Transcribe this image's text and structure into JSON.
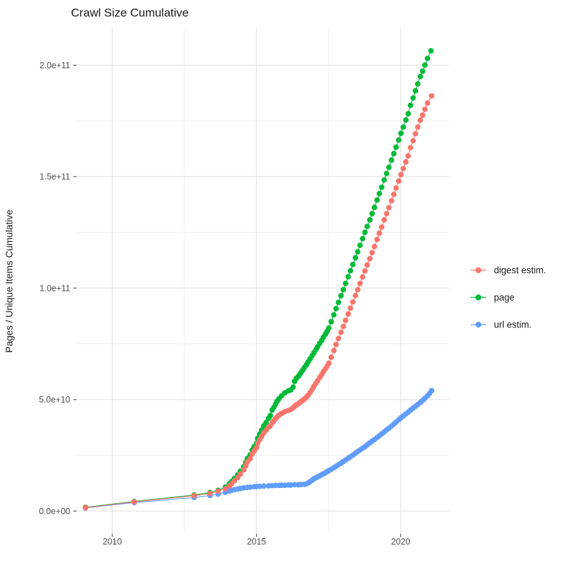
{
  "title": "Crawl Size Cumulative",
  "axes": {
    "y_label": "Pages / Unique Items Cumulative",
    "x_tick_labels": [
      "2010",
      "2015",
      "2020"
    ],
    "x_tick_years": [
      2010,
      2015,
      2020
    ],
    "x_minor_years": [
      2012.5,
      2017.5
    ],
    "y_tick_labels": [
      "0.0e+00",
      "5.0e+10",
      "1.0e+11",
      "1.5e+11",
      "2.0e+11"
    ],
    "y_tick_values_e9": [
      0,
      50,
      100,
      150,
      200
    ],
    "y_minor_values_e9": [
      25,
      75,
      125,
      175
    ]
  },
  "legend": [
    {
      "label": "digest estim.",
      "color": "#F8766D",
      "series": "digest"
    },
    {
      "label": "page",
      "color": "#00BA38",
      "series": "page"
    },
    {
      "label": "url estim.",
      "color": "#619CFF",
      "series": "url"
    }
  ],
  "colors": {
    "digest": "#F8766D",
    "page": "#00BA38",
    "url": "#619CFF",
    "grid_major": "#E4E4E4",
    "grid_minor": "#EFEFEF",
    "tick": "#333333"
  },
  "chart_data": {
    "type": "line",
    "marker": "point",
    "title": "Crawl Size Cumulative",
    "xlabel": "",
    "ylabel": "Pages / Unique Items Cumulative",
    "x_unit": "year (decimal)",
    "y_unit": "items, value expressed in billions (1e9); e.g. 206.4 = 2.064e+11",
    "xlim": [
      2008.75,
      2021.67
    ],
    "ylim_e9": [
      0,
      213
    ],
    "grid": true,
    "legend_position": "right",
    "series": [
      {
        "name": "url estim.",
        "color": "#619CFF",
        "points": [
          [
            2009.07,
            1.4
          ],
          [
            2010.76,
            3.8
          ],
          [
            2012.84,
            6.1
          ],
          [
            2013.39,
            7.0
          ],
          [
            2013.67,
            7.6
          ],
          [
            2013.92,
            8.4
          ],
          [
            2014.06,
            9.0
          ],
          [
            2014.13,
            9.3
          ],
          [
            2014.23,
            9.6
          ],
          [
            2014.35,
            9.9
          ],
          [
            2014.44,
            10.1
          ],
          [
            2014.56,
            10.4
          ],
          [
            2014.68,
            10.6
          ],
          [
            2014.78,
            10.7
          ],
          [
            2014.92,
            10.9
          ],
          [
            2015.0,
            11.0
          ],
          [
            2015.11,
            11.1
          ],
          [
            2015.25,
            11.2
          ],
          [
            2015.42,
            11.3
          ],
          [
            2015.54,
            11.4
          ],
          [
            2015.66,
            11.5
          ],
          [
            2015.78,
            11.5
          ],
          [
            2015.87,
            11.6
          ],
          [
            2015.98,
            11.6
          ],
          [
            2016.1,
            11.7
          ],
          [
            2016.19,
            11.7
          ],
          [
            2016.32,
            11.8
          ],
          [
            2016.45,
            11.8
          ],
          [
            2016.55,
            11.9
          ],
          [
            2016.66,
            12.0
          ],
          [
            2016.73,
            12.2
          ],
          [
            2016.79,
            12.6
          ],
          [
            2016.86,
            13.2
          ],
          [
            2016.93,
            13.9
          ],
          [
            2016.99,
            14.5
          ],
          [
            2017.06,
            14.9
          ],
          [
            2017.12,
            15.3
          ],
          [
            2017.19,
            15.8
          ],
          [
            2017.26,
            16.3
          ],
          [
            2017.32,
            16.7
          ],
          [
            2017.39,
            17.2
          ],
          [
            2017.45,
            17.7
          ],
          [
            2017.51,
            18.1
          ],
          [
            2017.59,
            18.7
          ],
          [
            2017.68,
            19.4
          ],
          [
            2017.76,
            20.1
          ],
          [
            2017.84,
            20.8
          ],
          [
            2017.93,
            21.5
          ],
          [
            2018.01,
            22.2
          ],
          [
            2018.09,
            22.9
          ],
          [
            2018.18,
            23.7
          ],
          [
            2018.26,
            24.4
          ],
          [
            2018.34,
            25.1
          ],
          [
            2018.43,
            25.9
          ],
          [
            2018.51,
            26.7
          ],
          [
            2018.59,
            27.4
          ],
          [
            2018.68,
            28.2
          ],
          [
            2018.76,
            28.9
          ],
          [
            2018.84,
            29.7
          ],
          [
            2018.93,
            30.6
          ],
          [
            2019.01,
            31.4
          ],
          [
            2019.09,
            32.1
          ],
          [
            2019.18,
            33.0
          ],
          [
            2019.26,
            33.8
          ],
          [
            2019.34,
            34.6
          ],
          [
            2019.43,
            35.5
          ],
          [
            2019.51,
            36.4
          ],
          [
            2019.59,
            37.2
          ],
          [
            2019.68,
            38.1
          ],
          [
            2019.76,
            39.0
          ],
          [
            2019.84,
            39.9
          ],
          [
            2019.93,
            40.9
          ],
          [
            2020.01,
            41.9
          ],
          [
            2020.09,
            42.7
          ],
          [
            2020.18,
            43.6
          ],
          [
            2020.26,
            44.4
          ],
          [
            2020.34,
            45.3
          ],
          [
            2020.43,
            46.2
          ],
          [
            2020.51,
            47.0
          ],
          [
            2020.59,
            47.8
          ],
          [
            2020.68,
            48.7
          ],
          [
            2020.76,
            49.6
          ],
          [
            2020.84,
            50.6
          ],
          [
            2020.93,
            51.7
          ],
          [
            2021.0,
            52.8
          ],
          [
            2021.07,
            54.0
          ]
        ]
      },
      {
        "name": "page",
        "color": "#00BA38",
        "points": [
          [
            2009.07,
            1.7
          ],
          [
            2010.76,
            4.3
          ],
          [
            2012.84,
            7.2
          ],
          [
            2013.39,
            8.3
          ],
          [
            2013.67,
            9.3
          ],
          [
            2013.92,
            10.8
          ],
          [
            2014.06,
            12.2
          ],
          [
            2014.13,
            13.2
          ],
          [
            2014.23,
            14.6
          ],
          [
            2014.35,
            16.2
          ],
          [
            2014.44,
            17.9
          ],
          [
            2014.56,
            19.9
          ],
          [
            2014.63,
            21.8
          ],
          [
            2014.68,
            23.6
          ],
          [
            2014.78,
            25.2
          ],
          [
            2014.85,
            27.4
          ],
          [
            2014.92,
            28.9
          ],
          [
            2015.0,
            30.4
          ],
          [
            2015.04,
            32.6
          ],
          [
            2015.11,
            34.5
          ],
          [
            2015.18,
            36.3
          ],
          [
            2015.25,
            38.2
          ],
          [
            2015.33,
            39.7
          ],
          [
            2015.42,
            41.6
          ],
          [
            2015.48,
            42.8
          ],
          [
            2015.54,
            45.3
          ],
          [
            2015.6,
            46.5
          ],
          [
            2015.66,
            47.9
          ],
          [
            2015.71,
            49.2
          ],
          [
            2015.78,
            50.4
          ],
          [
            2015.87,
            51.7
          ],
          [
            2015.98,
            53.0
          ],
          [
            2016.1,
            53.9
          ],
          [
            2016.19,
            54.3
          ],
          [
            2016.27,
            55.6
          ],
          [
            2016.32,
            58.2
          ],
          [
            2016.38,
            59.5
          ],
          [
            2016.45,
            60.4
          ],
          [
            2016.5,
            61.3
          ],
          [
            2016.55,
            62.3
          ],
          [
            2016.61,
            63.3
          ],
          [
            2016.66,
            64.4
          ],
          [
            2016.73,
            65.6
          ],
          [
            2016.79,
            66.9
          ],
          [
            2016.86,
            68.3
          ],
          [
            2016.93,
            69.7
          ],
          [
            2016.99,
            71.0
          ],
          [
            2017.06,
            72.4
          ],
          [
            2017.12,
            73.7
          ],
          [
            2017.19,
            75.2
          ],
          [
            2017.26,
            76.5
          ],
          [
            2017.32,
            78.0
          ],
          [
            2017.39,
            79.3
          ],
          [
            2017.45,
            80.6
          ],
          [
            2017.51,
            82.1
          ],
          [
            2017.59,
            84.9
          ],
          [
            2017.68,
            88.0
          ],
          [
            2017.76,
            90.8
          ],
          [
            2017.84,
            93.6
          ],
          [
            2017.93,
            96.6
          ],
          [
            2018.01,
            99.3
          ],
          [
            2018.09,
            102.1
          ],
          [
            2018.18,
            105.1
          ],
          [
            2018.26,
            107.8
          ],
          [
            2018.34,
            110.6
          ],
          [
            2018.43,
            113.6
          ],
          [
            2018.51,
            116.3
          ],
          [
            2018.59,
            119.2
          ],
          [
            2018.68,
            122.2
          ],
          [
            2018.76,
            125.0
          ],
          [
            2018.84,
            127.7
          ],
          [
            2018.93,
            130.6
          ],
          [
            2019.01,
            133.4
          ],
          [
            2019.09,
            136.2
          ],
          [
            2019.18,
            139.5
          ],
          [
            2019.26,
            142.4
          ],
          [
            2019.34,
            145.2
          ],
          [
            2019.43,
            148.5
          ],
          [
            2019.51,
            151.4
          ],
          [
            2019.59,
            154.2
          ],
          [
            2019.68,
            157.4
          ],
          [
            2019.76,
            160.3
          ],
          [
            2019.84,
            163.2
          ],
          [
            2019.93,
            166.4
          ],
          [
            2020.01,
            169.4
          ],
          [
            2020.09,
            172.2
          ],
          [
            2020.18,
            175.4
          ],
          [
            2020.26,
            178.2
          ],
          [
            2020.34,
            182.0
          ],
          [
            2020.43,
            185.3
          ],
          [
            2020.51,
            188.5
          ],
          [
            2020.59,
            191.6
          ],
          [
            2020.68,
            194.9
          ],
          [
            2020.76,
            197.3
          ],
          [
            2020.84,
            200.0
          ],
          [
            2020.93,
            203.0
          ],
          [
            2021.05,
            206.4
          ]
        ]
      },
      {
        "name": "digest estim.",
        "color": "#F8766D",
        "points": [
          [
            2009.07,
            1.5
          ],
          [
            2010.76,
            4.1
          ],
          [
            2012.84,
            6.9
          ],
          [
            2013.39,
            7.9
          ],
          [
            2013.67,
            8.9
          ],
          [
            2013.92,
            10.0
          ],
          [
            2014.06,
            11.2
          ],
          [
            2014.13,
            12.2
          ],
          [
            2014.23,
            13.5
          ],
          [
            2014.35,
            15.0
          ],
          [
            2014.44,
            16.6
          ],
          [
            2014.56,
            18.5
          ],
          [
            2014.63,
            20.3
          ],
          [
            2014.68,
            22.0
          ],
          [
            2014.78,
            23.5
          ],
          [
            2014.85,
            25.6
          ],
          [
            2014.92,
            27.0
          ],
          [
            2015.0,
            28.4
          ],
          [
            2015.04,
            30.3
          ],
          [
            2015.11,
            32.0
          ],
          [
            2015.18,
            33.5
          ],
          [
            2015.25,
            35.1
          ],
          [
            2015.33,
            36.2
          ],
          [
            2015.42,
            37.6
          ],
          [
            2015.48,
            38.3
          ],
          [
            2015.54,
            39.6
          ],
          [
            2015.6,
            40.5
          ],
          [
            2015.66,
            41.4
          ],
          [
            2015.71,
            42.2
          ],
          [
            2015.78,
            43.0
          ],
          [
            2015.87,
            43.8
          ],
          [
            2015.98,
            44.6
          ],
          [
            2016.1,
            45.1
          ],
          [
            2016.19,
            45.6
          ],
          [
            2016.27,
            46.3
          ],
          [
            2016.32,
            47.0
          ],
          [
            2016.38,
            47.6
          ],
          [
            2016.45,
            48.1
          ],
          [
            2016.5,
            48.7
          ],
          [
            2016.55,
            49.2
          ],
          [
            2016.61,
            49.7
          ],
          [
            2016.66,
            50.3
          ],
          [
            2016.73,
            51.1
          ],
          [
            2016.79,
            52.0
          ],
          [
            2016.86,
            53.2
          ],
          [
            2016.93,
            54.6
          ],
          [
            2016.99,
            56.0
          ],
          [
            2017.06,
            57.3
          ],
          [
            2017.12,
            58.5
          ],
          [
            2017.19,
            59.9
          ],
          [
            2017.26,
            61.2
          ],
          [
            2017.32,
            62.5
          ],
          [
            2017.39,
            63.8
          ],
          [
            2017.45,
            65.0
          ],
          [
            2017.51,
            66.3
          ],
          [
            2017.59,
            69.0
          ],
          [
            2017.68,
            72.0
          ],
          [
            2017.76,
            74.7
          ],
          [
            2017.84,
            77.4
          ],
          [
            2017.93,
            80.2
          ],
          [
            2018.01,
            82.8
          ],
          [
            2018.09,
            85.5
          ],
          [
            2018.18,
            88.4
          ],
          [
            2018.26,
            91.0
          ],
          [
            2018.34,
            93.8
          ],
          [
            2018.43,
            96.7
          ],
          [
            2018.51,
            99.3
          ],
          [
            2018.59,
            102.1
          ],
          [
            2018.68,
            105.0
          ],
          [
            2018.76,
            107.7
          ],
          [
            2018.84,
            110.4
          ],
          [
            2018.93,
            113.2
          ],
          [
            2019.01,
            115.9
          ],
          [
            2019.09,
            118.6
          ],
          [
            2019.18,
            121.8
          ],
          [
            2019.26,
            124.6
          ],
          [
            2019.34,
            127.4
          ],
          [
            2019.43,
            130.6
          ],
          [
            2019.51,
            133.4
          ],
          [
            2019.59,
            136.1
          ],
          [
            2019.68,
            139.2
          ],
          [
            2019.76,
            142.0
          ],
          [
            2019.84,
            144.9
          ],
          [
            2019.93,
            148.0
          ],
          [
            2020.01,
            150.9
          ],
          [
            2020.09,
            153.6
          ],
          [
            2020.18,
            156.6
          ],
          [
            2020.26,
            159.3
          ],
          [
            2020.34,
            163.0
          ],
          [
            2020.43,
            166.1
          ],
          [
            2020.51,
            169.2
          ],
          [
            2020.59,
            172.2
          ],
          [
            2020.68,
            175.3
          ],
          [
            2020.76,
            177.6
          ],
          [
            2020.84,
            180.2
          ],
          [
            2020.93,
            183.0
          ],
          [
            2021.07,
            186.2
          ]
        ]
      }
    ]
  }
}
